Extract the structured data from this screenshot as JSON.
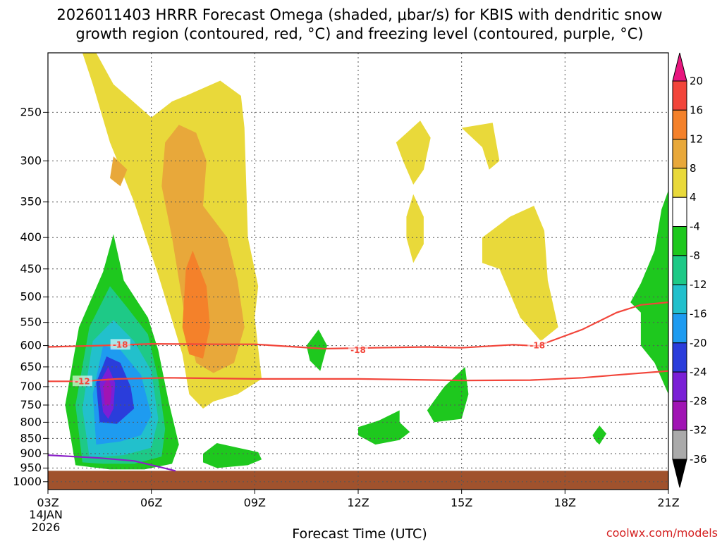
{
  "chart_data": {
    "type": "heatmap",
    "title_line1": "2026011403 HRRR Forecast Omega (shaded, μbar/s) for KBIS with dendritic snow",
    "title_line2": "growth region (contoured, red, °C) and freezing level (contoured, purple, °C)",
    "xlabel": "Forecast Time (UTC)",
    "ylabel": "",
    "x_ticks": [
      "03Z",
      "06Z",
      "09Z",
      "12Z",
      "15Z",
      "18Z",
      "21Z"
    ],
    "x_tick_hours": [
      0,
      3,
      6,
      9,
      12,
      15,
      18
    ],
    "x_range_hours": [
      0,
      18
    ],
    "date_label_line1": "14JAN",
    "date_label_line2": "2026",
    "y_ticks": [
      250,
      300,
      350,
      400,
      450,
      500,
      550,
      600,
      650,
      700,
      750,
      800,
      850,
      900,
      950,
      1000
    ],
    "y_range_hPa": [
      200,
      1030
    ],
    "y_scale": "log",
    "colorbar": {
      "unit": "μbar/s",
      "tick_labels": [
        "20",
        "16",
        "12",
        "8",
        "4",
        "-4",
        "-8",
        "-12",
        "-16",
        "-20",
        "-24",
        "-28",
        "-32",
        "-36"
      ],
      "tick_values": [
        20,
        16,
        12,
        8,
        4,
        -4,
        -8,
        -12,
        -16,
        -20,
        -24,
        -28,
        -32,
        -36
      ],
      "bins": [
        {
          "range": [
            20,
            99
          ],
          "color": "#e8157e"
        },
        {
          "range": [
            16,
            20
          ],
          "color": "#f2453a"
        },
        {
          "range": [
            12,
            16
          ],
          "color": "#f4812a"
        },
        {
          "range": [
            8,
            12
          ],
          "color": "#e8a83a"
        },
        {
          "range": [
            4,
            8
          ],
          "color": "#e9d93a"
        },
        {
          "range": [
            -4,
            4
          ],
          "color": "#ffffff"
        },
        {
          "range": [
            -8,
            -4
          ],
          "color": "#1ec81e"
        },
        {
          "range": [
            -12,
            -8
          ],
          "color": "#1ec987"
        },
        {
          "range": [
            -16,
            -12
          ],
          "color": "#22c0cc"
        },
        {
          "range": [
            -20,
            -16
          ],
          "color": "#1e9bf0"
        },
        {
          "range": [
            -24,
            -20
          ],
          "color": "#2a3ddb"
        },
        {
          "range": [
            -28,
            -24
          ],
          "color": "#7a1fd6"
        },
        {
          "range": [
            -32,
            -28
          ],
          "color": "#a014b4"
        },
        {
          "range": [
            -36,
            -32
          ],
          "color": "#aaaaaa"
        },
        {
          "range": [
            -99,
            -36
          ],
          "color": "#000000"
        }
      ]
    },
    "omega_regions": [
      {
        "label": "ascent-core-4",
        "level": -4,
        "color": "#1ec81e",
        "points": [
          [
            0.8,
            940
          ],
          [
            0.5,
            750
          ],
          [
            0.9,
            560
          ],
          [
            1.6,
            455
          ],
          [
            1.9,
            395
          ],
          [
            2.2,
            470
          ],
          [
            2.9,
            540
          ],
          [
            3.2,
            610
          ],
          [
            3.5,
            740
          ],
          [
            3.8,
            870
          ],
          [
            3.6,
            935
          ],
          [
            2.8,
            955
          ],
          [
            1.8,
            955
          ]
        ]
      },
      {
        "label": "ascent-core-8",
        "level": -8,
        "color": "#1ec987",
        "points": [
          [
            1.0,
            930
          ],
          [
            0.8,
            750
          ],
          [
            1.2,
            560
          ],
          [
            1.8,
            480
          ],
          [
            2.3,
            520
          ],
          [
            2.9,
            575
          ],
          [
            3.2,
            680
          ],
          [
            3.4,
            820
          ],
          [
            3.3,
            910
          ],
          [
            2.5,
            935
          ],
          [
            1.6,
            935
          ]
        ]
      },
      {
        "label": "ascent-core-12",
        "level": -12,
        "color": "#22c0cc",
        "points": [
          [
            1.2,
            910
          ],
          [
            1.0,
            760
          ],
          [
            1.3,
            590
          ],
          [
            1.9,
            545
          ],
          [
            2.5,
            590
          ],
          [
            3.0,
            660
          ],
          [
            3.2,
            790
          ],
          [
            3.0,
            880
          ],
          [
            2.2,
            905
          ],
          [
            1.6,
            910
          ]
        ]
      },
      {
        "label": "ascent-core-16",
        "level": -16,
        "color": "#1e9bf0",
        "points": [
          [
            1.4,
            870
          ],
          [
            1.3,
            720
          ],
          [
            1.6,
            600
          ],
          [
            2.1,
            610
          ],
          [
            2.7,
            670
          ],
          [
            3.0,
            780
          ],
          [
            2.7,
            840
          ],
          [
            2.1,
            860
          ]
        ]
      },
      {
        "label": "ascent-core-20",
        "level": -20,
        "color": "#2a3ddb",
        "points": [
          [
            1.5,
            800
          ],
          [
            1.4,
            690
          ],
          [
            1.7,
            625
          ],
          [
            2.1,
            640
          ],
          [
            2.4,
            700
          ],
          [
            2.5,
            760
          ],
          [
            2.0,
            805
          ]
        ]
      },
      {
        "label": "ascent-core-24",
        "level": -24,
        "color": "#7a1fd6",
        "points": [
          [
            1.6,
            770
          ],
          [
            1.5,
            690
          ],
          [
            1.75,
            650
          ],
          [
            1.95,
            690
          ],
          [
            1.9,
            760
          ],
          [
            1.75,
            790
          ]
        ]
      },
      {
        "label": "ascent-core-28",
        "level": -28,
        "color": "#a014b4",
        "points": [
          [
            1.65,
            750
          ],
          [
            1.6,
            700
          ],
          [
            1.75,
            675
          ],
          [
            1.85,
            705
          ],
          [
            1.8,
            750
          ]
        ]
      },
      {
        "label": "descent-upper-4",
        "level": 4,
        "color": "#e9d93a",
        "points": [
          [
            1.0,
            200
          ],
          [
            1.4,
            200
          ],
          [
            1.9,
            225
          ],
          [
            3.0,
            255
          ],
          [
            3.6,
            240
          ],
          [
            4.0,
            235
          ],
          [
            5.0,
            222
          ],
          [
            5.6,
            235
          ],
          [
            5.7,
            265
          ],
          [
            5.8,
            400
          ],
          [
            6.1,
            480
          ],
          [
            6.0,
            540
          ],
          [
            6.2,
            680
          ],
          [
            5.5,
            720
          ],
          [
            4.8,
            740
          ],
          [
            4.5,
            760
          ],
          [
            4.1,
            720
          ],
          [
            3.9,
            620
          ],
          [
            3.2,
            460
          ],
          [
            2.5,
            350
          ],
          [
            1.8,
            280
          ],
          [
            1.3,
            225
          ]
        ]
      },
      {
        "label": "descent-upper-8",
        "level": 8,
        "color": "#e8a83a",
        "points": [
          [
            3.4,
            280
          ],
          [
            3.8,
            262
          ],
          [
            4.3,
            270
          ],
          [
            4.6,
            300
          ],
          [
            4.5,
            355
          ],
          [
            5.2,
            400
          ],
          [
            5.5,
            470
          ],
          [
            5.7,
            560
          ],
          [
            5.4,
            640
          ],
          [
            4.8,
            665
          ],
          [
            4.3,
            640
          ],
          [
            4.0,
            550
          ],
          [
            3.6,
            400
          ],
          [
            3.3,
            330
          ]
        ]
      },
      {
        "label": "descent-upper-8b",
        "level": 8,
        "color": "#e8a83a",
        "points": [
          [
            1.9,
            295
          ],
          [
            2.3,
            310
          ],
          [
            2.1,
            330
          ],
          [
            1.8,
            320
          ]
        ]
      },
      {
        "label": "descent-upper-12",
        "level": 12,
        "color": "#f4812a",
        "points": [
          [
            4.0,
            450
          ],
          [
            4.2,
            420
          ],
          [
            4.6,
            480
          ],
          [
            4.7,
            560
          ],
          [
            4.5,
            630
          ],
          [
            4.1,
            620
          ],
          [
            3.9,
            560
          ]
        ]
      },
      {
        "label": "descent-mid-a",
        "level": 4,
        "color": "#e9d93a",
        "points": [
          [
            10.1,
            280
          ],
          [
            10.8,
            258
          ],
          [
            11.1,
            275
          ],
          [
            10.9,
            310
          ],
          [
            10.6,
            328
          ],
          [
            10.3,
            300
          ]
        ]
      },
      {
        "label": "descent-mid-b",
        "level": 4,
        "color": "#e9d93a",
        "points": [
          [
            12.0,
            265
          ],
          [
            12.9,
            260
          ],
          [
            13.1,
            300
          ],
          [
            12.8,
            310
          ],
          [
            12.6,
            285
          ]
        ]
      },
      {
        "label": "descent-mid-c",
        "level": 4,
        "color": "#e9d93a",
        "points": [
          [
            10.6,
            340
          ],
          [
            10.9,
            370
          ],
          [
            10.9,
            410
          ],
          [
            10.6,
            440
          ],
          [
            10.4,
            400
          ],
          [
            10.4,
            370
          ]
        ]
      },
      {
        "label": "descent-mid-d",
        "level": 4,
        "color": "#e9d93a",
        "points": [
          [
            12.6,
            400
          ],
          [
            13.4,
            370
          ],
          [
            14.1,
            355
          ],
          [
            14.4,
            390
          ],
          [
            14.5,
            470
          ],
          [
            14.8,
            560
          ],
          [
            14.3,
            590
          ],
          [
            13.7,
            540
          ],
          [
            13.1,
            450
          ],
          [
            12.6,
            440
          ]
        ]
      },
      {
        "label": "ascent-small-a",
        "level": -4,
        "color": "#1ec81e",
        "points": [
          [
            7.5,
            600
          ],
          [
            7.85,
            565
          ],
          [
            8.1,
            600
          ],
          [
            7.9,
            660
          ],
          [
            7.6,
            635
          ]
        ]
      },
      {
        "label": "ascent-small-b",
        "level": -4,
        "color": "#1ec81e",
        "points": [
          [
            9.0,
            815
          ],
          [
            9.6,
            795
          ],
          [
            10.2,
            765
          ],
          [
            10.2,
            800
          ],
          [
            10.5,
            830
          ],
          [
            10.2,
            855
          ],
          [
            9.5,
            870
          ],
          [
            9.0,
            840
          ]
        ]
      },
      {
        "label": "ascent-small-c",
        "level": -4,
        "color": "#1ec81e",
        "points": [
          [
            11.0,
            765
          ],
          [
            11.5,
            700
          ],
          [
            12.1,
            650
          ],
          [
            12.2,
            720
          ],
          [
            12.0,
            790
          ],
          [
            11.2,
            800
          ]
        ]
      },
      {
        "label": "ascent-small-d",
        "level": -4,
        "color": "#1ec81e",
        "points": [
          [
            4.5,
            900
          ],
          [
            4.9,
            865
          ],
          [
            5.5,
            880
          ],
          [
            6.1,
            895
          ],
          [
            6.2,
            920
          ],
          [
            5.8,
            940
          ],
          [
            4.9,
            950
          ],
          [
            4.5,
            930
          ]
        ]
      },
      {
        "label": "ascent-small-e",
        "level": -4,
        "color": "#1ec81e",
        "points": [
          [
            15.8,
            840
          ],
          [
            16.0,
            810
          ],
          [
            16.2,
            835
          ],
          [
            16.0,
            870
          ],
          [
            15.9,
            860
          ]
        ]
      },
      {
        "label": "ascent-right",
        "level": -4,
        "color": "#1ec81e",
        "points": [
          [
            18.0,
            335
          ],
          [
            18.0,
            720
          ],
          [
            17.6,
            640
          ],
          [
            17.2,
            600
          ],
          [
            17.2,
            530
          ],
          [
            16.9,
            510
          ],
          [
            17.2,
            475
          ],
          [
            17.6,
            420
          ],
          [
            17.8,
            360
          ]
        ]
      }
    ],
    "contours": [
      {
        "name": "dendritic-minus18",
        "label": "-18",
        "color": "#f2453a",
        "label_positions": [
          [
            2.1,
            598
          ],
          [
            9.0,
            610
          ],
          [
            14.2,
            600
          ]
        ],
        "points": [
          [
            0.0,
            603
          ],
          [
            1.5,
            600
          ],
          [
            3.0,
            596
          ],
          [
            5.0,
            597
          ],
          [
            6.0,
            597
          ],
          [
            8.0,
            607
          ],
          [
            9.5,
            605
          ],
          [
            11.0,
            603
          ],
          [
            12.0,
            605
          ],
          [
            13.5,
            598
          ],
          [
            14.2,
            601
          ],
          [
            15.5,
            565
          ],
          [
            16.5,
            530
          ],
          [
            17.2,
            515
          ],
          [
            18.0,
            510
          ]
        ]
      },
      {
        "name": "dendritic-minus12",
        "label": "-12",
        "color": "#f2453a",
        "label_positions": [
          [
            1.0,
            686
          ]
        ],
        "points": [
          [
            0.0,
            686
          ],
          [
            1.0,
            686
          ],
          [
            2.0,
            680
          ],
          [
            3.5,
            677
          ],
          [
            6.0,
            680
          ],
          [
            9.0,
            680
          ],
          [
            12.0,
            684
          ],
          [
            14.0,
            683
          ],
          [
            15.5,
            677
          ],
          [
            16.5,
            670
          ],
          [
            18.0,
            660
          ]
        ]
      },
      {
        "name": "freezing-level",
        "label": "",
        "color": "#8a1fc8",
        "label_positions": [],
        "points": [
          [
            0.0,
            905
          ],
          [
            1.5,
            915
          ],
          [
            2.5,
            925
          ],
          [
            3.2,
            945
          ],
          [
            3.7,
            960
          ]
        ]
      }
    ],
    "ground": {
      "top_hPa": 960,
      "color": "#a0522d"
    },
    "credit": "coolwx.com/models",
    "credit_color": "#d42020"
  }
}
